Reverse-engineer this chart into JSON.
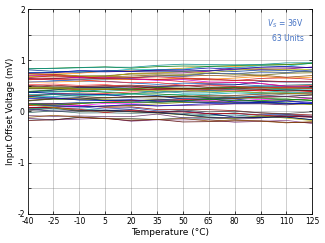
{
  "title": "",
  "xlabel": "Temperature (°C)",
  "ylabel": "Input Offset Voltage (mV)",
  "xlim": [
    -40,
    125
  ],
  "ylim": [
    -2,
    2
  ],
  "xticks": [
    -40,
    -25,
    -10,
    5,
    20,
    35,
    50,
    65,
    80,
    95,
    110,
    125
  ],
  "yticks": [
    -2,
    -1.5,
    -1,
    -0.5,
    0,
    0.5,
    1,
    1.5,
    2
  ],
  "ytick_labels": [
    "-2",
    "",
    "-1",
    "",
    "0",
    "",
    "1",
    "",
    "2"
  ],
  "annotation_color": "#4472C4",
  "n_units": 63,
  "temp_points": [
    -40,
    -25,
    -10,
    5,
    20,
    35,
    50,
    65,
    80,
    95,
    110,
    125
  ],
  "background_color": "#ffffff",
  "line_width": 0.55,
  "seed": 12345
}
